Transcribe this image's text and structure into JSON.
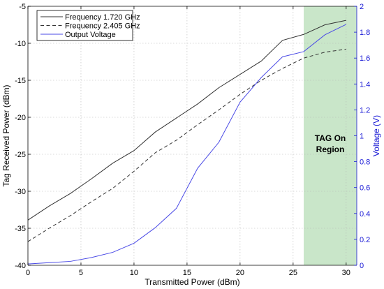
{
  "chart_data": {
    "type": "line",
    "xlabel": "Transmitted Power (dBm)",
    "ylabel": "Tag Received Power (dBm)",
    "ylabel_right": "Voltage (V)",
    "xlim": [
      0,
      31
    ],
    "ylim": [
      -40,
      -5
    ],
    "ylim_right": [
      0,
      2
    ],
    "x_ticks": [
      0,
      5,
      10,
      15,
      20,
      25,
      30
    ],
    "y_ticks": [
      -40,
      -35,
      -30,
      -25,
      -20,
      -15,
      -10,
      -5
    ],
    "y_ticks_right": [
      0,
      0.2,
      0.4,
      0.6,
      0.8,
      1,
      1.2,
      1.4,
      1.6,
      1.8,
      2
    ],
    "grid": true,
    "legend_position": "top-left",
    "shaded_region": {
      "x_start": 26,
      "x_end": 31,
      "color": "#c9e6c9",
      "label_lines": [
        "TAG On",
        "Region"
      ]
    },
    "series": [
      {
        "name": "Frequency 1.720 GHz",
        "axis": "left",
        "color": "#333333",
        "dash": "solid",
        "x": [
          0,
          2,
          4,
          6,
          8,
          10,
          12,
          14,
          16,
          18,
          20,
          22,
          24,
          26,
          28,
          30
        ],
        "y": [
          -33.9,
          -32.0,
          -30.3,
          -28.3,
          -26.2,
          -24.5,
          -22.0,
          -20.1,
          -18.2,
          -16.0,
          -14.2,
          -12.4,
          -9.6,
          -8.8,
          -7.5,
          -6.9
        ]
      },
      {
        "name": "Frequency 2.405 GHz",
        "axis": "left",
        "color": "#333333",
        "dash": "dashed",
        "x": [
          0,
          2,
          4,
          6,
          8,
          10,
          12,
          14,
          16,
          18,
          20,
          22,
          24,
          26,
          28,
          30
        ],
        "y": [
          -36.8,
          -35.0,
          -33.3,
          -31.4,
          -29.6,
          -27.3,
          -24.8,
          -23.1,
          -21.0,
          -19.0,
          -16.9,
          -15.0,
          -13.4,
          -12.0,
          -11.2,
          -10.8
        ]
      },
      {
        "name": "Output Voltage",
        "axis": "right",
        "color": "#4a4ae6",
        "dash": "solid",
        "x": [
          0,
          2,
          4,
          6,
          8,
          10,
          12,
          14,
          16,
          18,
          20,
          22,
          24,
          26,
          28,
          30
        ],
        "y": [
          0.01,
          0.02,
          0.03,
          0.06,
          0.1,
          0.17,
          0.29,
          0.44,
          0.75,
          0.95,
          1.26,
          1.45,
          1.61,
          1.65,
          1.78,
          1.86
        ]
      }
    ]
  }
}
